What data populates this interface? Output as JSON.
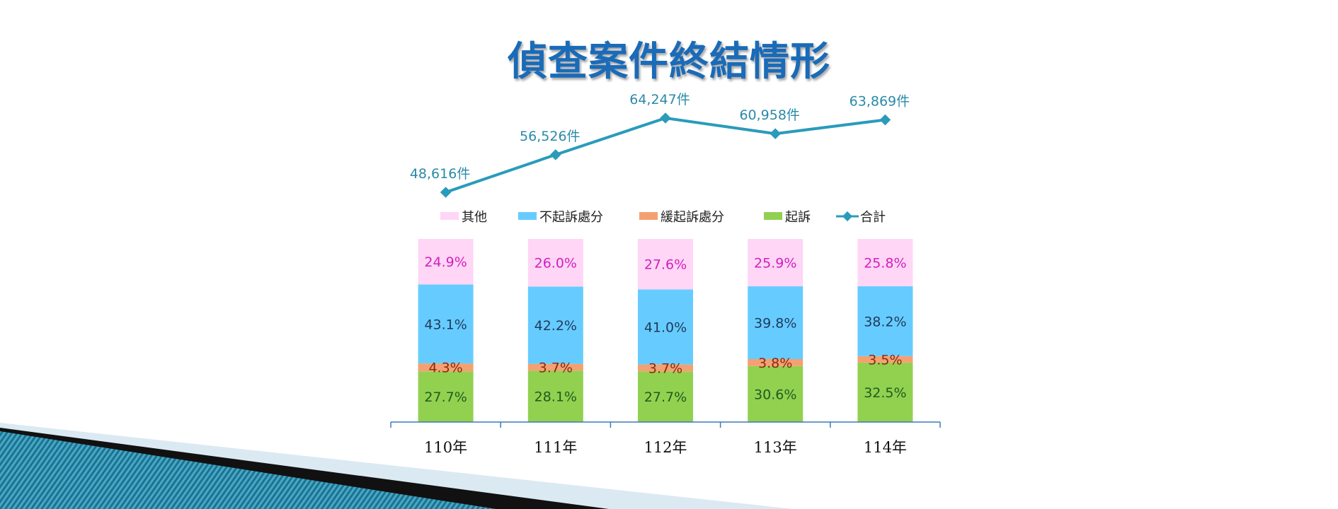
{
  "title": "偵查案件終結情形",
  "colors": {
    "title": "#1a6bb8",
    "total_line": "#2a9bbb",
    "total_label": "#2a8aa8",
    "axis": "#3a7ab8"
  },
  "chart_data": [
    {
      "type": "bar",
      "stacked": true,
      "categories": [
        "110年",
        "111年",
        "112年",
        "113年",
        "114年"
      ],
      "series": [
        {
          "name": "起訴",
          "values": [
            "27.7%",
            "28.1%",
            "27.7%",
            "30.6%",
            "32.5%"
          ],
          "color": "#92d050",
          "label_color": "#1f5c1f"
        },
        {
          "name": "緩起訴處分",
          "values": [
            "4.3%",
            "3.7%",
            "3.7%",
            "3.8%",
            "3.5%"
          ],
          "color": "#f4a071",
          "label_color": "#8a2a10"
        },
        {
          "name": "不起訴處分",
          "values": [
            "43.1%",
            "42.2%",
            "41.0%",
            "39.8%",
            "38.2%"
          ],
          "color": "#66ccff",
          "label_color": "#1f3a5c"
        },
        {
          "name": "其他",
          "values": [
            "24.9%",
            "26.0%",
            "27.6%",
            "25.9%",
            "25.8%"
          ],
          "color": "#ffd6f6",
          "label_color": "#d21fbf"
        }
      ],
      "legend_order": [
        "其他",
        "不起訴處分",
        "緩起訴處分",
        "起訴"
      ],
      "legend_position": "top"
    },
    {
      "type": "line",
      "categories": [
        "110年",
        "111年",
        "112年",
        "113年",
        "114年"
      ],
      "series": [
        {
          "name": "合計",
          "values": [
            48616,
            56526,
            64247,
            60958,
            63869
          ],
          "labels": [
            "48,616件",
            "56,526件",
            "64,247件",
            "60,958件",
            "63,869件"
          ],
          "color": "#2a9bbb"
        }
      ]
    }
  ]
}
